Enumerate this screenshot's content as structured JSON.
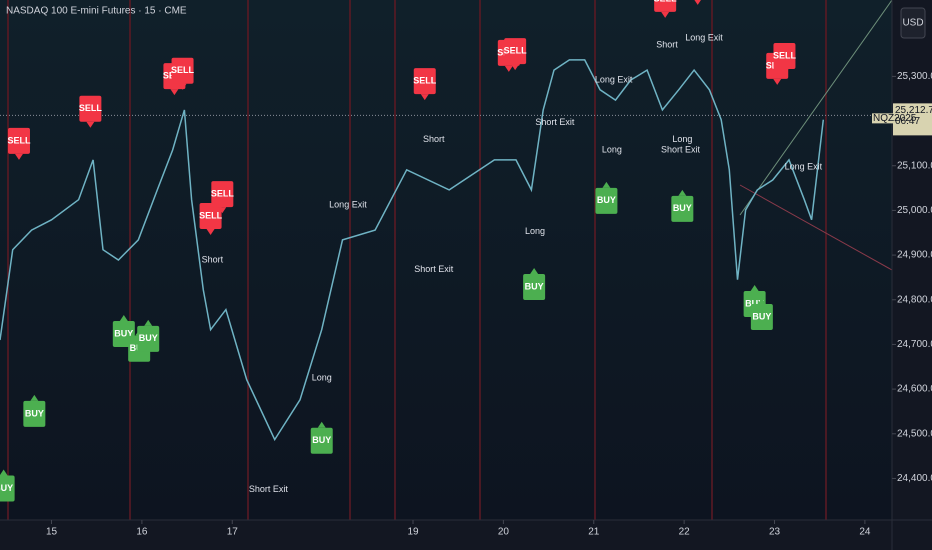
{
  "chart_data": {
    "type": "line",
    "title": "NASDAQ 100 E-mini Futures · 15 · CME",
    "symbol": "NQZ2025",
    "currency": "USD",
    "countdown": "06:47",
    "last_price": {
      "value": 25212.75,
      "label": "25,212.75"
    },
    "color": "#6fb3c4",
    "x": [
      14.43,
      14.57,
      14.78,
      15,
      15.3,
      15.46,
      15.57,
      15.74,
      15.96,
      16.17,
      16.34,
      16.47,
      16.55,
      16.68,
      16.76,
      16.93,
      17.16,
      17.47,
      17.75,
      17.99,
      18.22,
      18.58,
      18.93,
      19.4,
      19.9,
      20.14,
      20.31,
      20.44,
      20.56,
      20.73,
      20.9,
      21.07,
      21.24,
      21.41,
      21.59,
      21.76,
      21.94,
      22.11,
      22.28,
      22.41,
      22.5,
      22.59,
      22.68,
      22.81,
      22.98,
      23.16,
      23.33,
      23.41,
      23.54
    ],
    "values": [
      24710,
      24912,
      24956,
      24979,
      25024,
      25113,
      24912,
      24889,
      24934,
      25046,
      25135,
      25225,
      25024,
      24822,
      24733,
      24778,
      24621,
      24487,
      24576,
      24733,
      24934,
      24956,
      25091,
      25046,
      25113,
      25113,
      25046,
      25225,
      25314,
      25337,
      25337,
      25270,
      25247,
      25292,
      25314,
      25225,
      25270,
      25314,
      25270,
      25203,
      25091,
      24845,
      25001,
      25046,
      25068,
      25113,
      25024,
      24979,
      25203
    ],
    "xlim": [
      14.43,
      24.3
    ],
    "xticks": [
      15,
      16,
      17,
      19,
      20,
      21,
      22,
      23,
      24
    ],
    "ylim": [
      24307,
      25471
    ],
    "yticks": [
      {
        "value": 24400,
        "label": "24,400.00"
      },
      {
        "value": 24500,
        "label": "24,500.00"
      },
      {
        "value": 24600,
        "label": "24,600.00"
      },
      {
        "value": 24700,
        "label": "24,700.00"
      },
      {
        "value": 24800,
        "label": "24,800.00"
      },
      {
        "value": 24900,
        "label": "24,900.00"
      },
      {
        "value": 25000,
        "label": "25,000.00"
      },
      {
        "value": 25100,
        "label": "25,100.00"
      },
      {
        "value": 25300,
        "label": "25,300.00"
      }
    ],
    "signals": [
      {
        "label": "SELL",
        "x": 14.64,
        "y": 25113
      },
      {
        "label": "SELL",
        "x": 15.43,
        "y": 25185
      },
      {
        "label": "SELL",
        "x": 16.36,
        "y": 25258
      },
      {
        "label": "SELL",
        "x": 16.45,
        "y": 25270
      },
      {
        "label": "SELL",
        "x": 16.76,
        "y": 24945
      },
      {
        "label": "SELL",
        "x": 16.89,
        "y": 24994
      },
      {
        "label": "SELL",
        "x": 19.13,
        "y": 25247
      },
      {
        "label": "SELL",
        "x": 20.06,
        "y": 25310
      },
      {
        "label": "SELL",
        "x": 20.13,
        "y": 25314
      },
      {
        "label": "SELL",
        "x": 21.79,
        "y": 25431
      },
      {
        "label": "SELL",
        "x": 22.15,
        "y": 25460
      },
      {
        "label": "SELL",
        "x": 23.03,
        "y": 25281
      },
      {
        "label": "SELL",
        "x": 23.11,
        "y": 25303
      },
      {
        "label": "BUY",
        "x": 14.47,
        "y": 24420
      },
      {
        "label": "BUY",
        "x": 14.81,
        "y": 24587
      },
      {
        "label": "BUY",
        "x": 15.8,
        "y": 24766
      },
      {
        "label": "BUY",
        "x": 15.97,
        "y": 24733
      },
      {
        "label": "BUY",
        "x": 16.07,
        "y": 24755
      },
      {
        "label": "BUY",
        "x": 17.99,
        "y": 24527
      },
      {
        "label": "BUY",
        "x": 20.34,
        "y": 24871
      },
      {
        "label": "BUY",
        "x": 21.14,
        "y": 25064
      },
      {
        "label": "BUY",
        "x": 21.98,
        "y": 25046
      },
      {
        "label": "BUY",
        "x": 22.78,
        "y": 24833
      },
      {
        "label": "BUY",
        "x": 22.86,
        "y": 24804
      }
    ],
    "annotations": [
      {
        "text": "Short",
        "x": 19.23,
        "y": 25158
      },
      {
        "text": "Short",
        "x": 16.78,
        "y": 24889
      },
      {
        "text": "Short",
        "x": 21.81,
        "y": 25370
      },
      {
        "text": "Long Exit",
        "x": 18.28,
        "y": 25012
      },
      {
        "text": "Long Exit",
        "x": 21.22,
        "y": 25292
      },
      {
        "text": "Long Exit",
        "x": 22.22,
        "y": 25386
      },
      {
        "text": "Long Exit",
        "x": 23.32,
        "y": 25097
      },
      {
        "text": "Short Exit",
        "x": 19.23,
        "y": 24867
      },
      {
        "text": "Short Exit",
        "x": 17.4,
        "y": 24375
      },
      {
        "text": "Short Exit",
        "x": 20.57,
        "y": 25196
      },
      {
        "text": "Short Exit",
        "x": 21.96,
        "y": 25135
      },
      {
        "text": "Long",
        "x": 17.99,
        "y": 24625
      },
      {
        "text": "Long",
        "x": 20.35,
        "y": 24952
      },
      {
        "text": "Long",
        "x": 21.2,
        "y": 25135
      },
      {
        "text": "Long",
        "x": 21.98,
        "y": 25158
      }
    ]
  }
}
